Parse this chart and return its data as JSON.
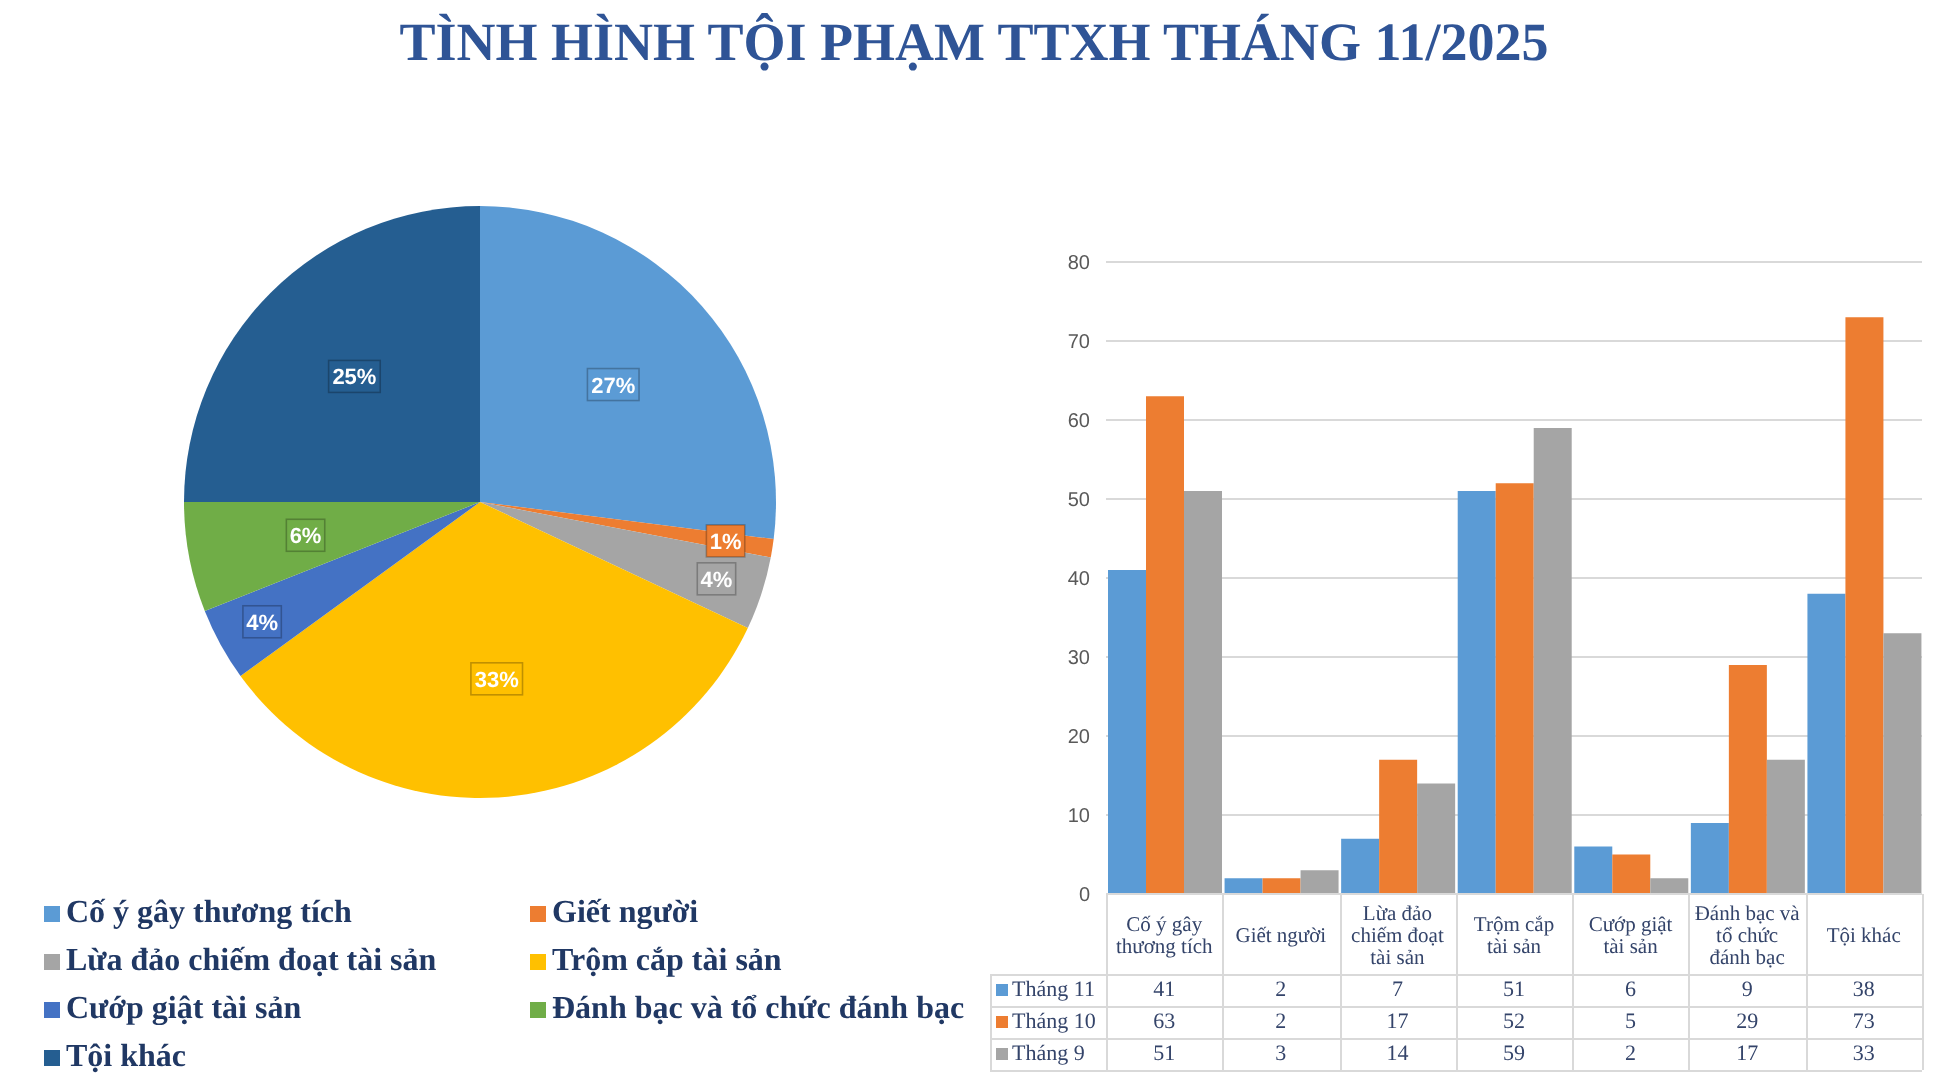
{
  "chart_data": [
    {
      "type": "pie",
      "title": "TÌNH HÌNH TỘI PHẠM TTXH THÁNG 11/2025",
      "categories": [
        "Cố ý gây thương tích",
        "Giết người",
        "Lừa đảo chiếm đoạt tài sản",
        "Trộm cắp tài sản",
        "Cướp giật tài sản",
        "Đánh bạc và tổ chức đánh bạc",
        "Tội khác"
      ],
      "values": [
        27,
        1,
        4,
        33,
        4,
        6,
        25
      ],
      "colors": [
        "#5b9bd5",
        "#ed7d31",
        "#a5a5a5",
        "#ffc000",
        "#4472c4",
        "#70ad47",
        "#255e91"
      ],
      "value_labels": [
        "27%",
        "1%",
        "4%",
        "33%",
        "4%",
        "6%",
        "25%"
      ],
      "legend": "bottom"
    },
    {
      "type": "bar",
      "categories": [
        "Cố ý gây thương tích",
        "Giết người",
        "Lừa đảo chiếm đoạt tài sản",
        "Trộm cắp tài sản",
        "Cướp giật tài sản",
        "Đánh bạc và tổ chức đánh bạc",
        "Tội khác"
      ],
      "series": [
        {
          "name": "Tháng 11",
          "color": "#5b9bd5",
          "values": [
            41,
            2,
            7,
            51,
            6,
            9,
            38
          ]
        },
        {
          "name": "Tháng 10",
          "color": "#ed7d31",
          "values": [
            63,
            2,
            17,
            52,
            5,
            29,
            73
          ]
        },
        {
          "name": "Tháng 9",
          "color": "#a5a5a5",
          "values": [
            51,
            3,
            14,
            59,
            2,
            17,
            33
          ]
        }
      ],
      "ylim": [
        0,
        80
      ],
      "yticks": [
        0,
        10,
        20,
        30,
        40,
        50,
        60,
        70,
        80
      ],
      "grid": "y",
      "legend": "bottom",
      "data_labels": true
    }
  ]
}
